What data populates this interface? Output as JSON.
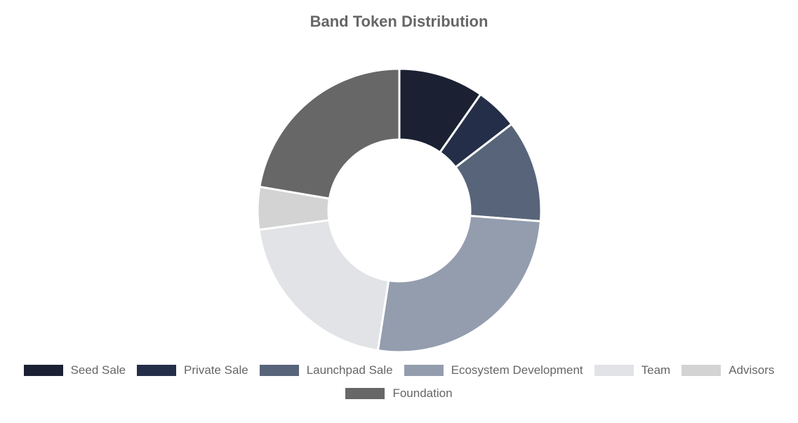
{
  "chart_data": {
    "type": "pie",
    "title": "Band Token Distribution",
    "categories": [
      "Seed Sale",
      "Private Sale",
      "Launchpad Sale",
      "Ecosystem Development",
      "Team",
      "Advisors",
      "Foundation"
    ],
    "values": [
      10,
      5,
      12,
      27,
      21,
      5,
      23
    ],
    "colors": [
      "#1b2133",
      "#252e48",
      "#586479",
      "#949dae",
      "#e1e3e6",
      "#d3d3d3",
      "#676767"
    ],
    "legend": "bottom",
    "hole": "donut"
  }
}
